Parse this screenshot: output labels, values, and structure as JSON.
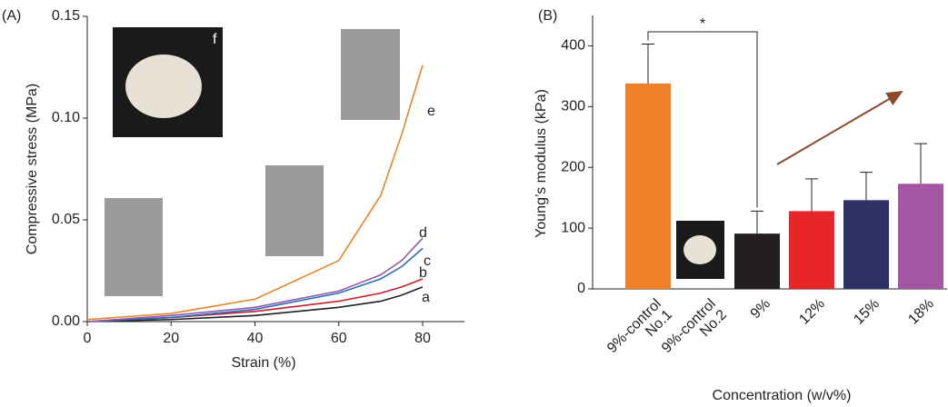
{
  "chart_data": [
    {
      "type": "line",
      "panel": "(A)",
      "xlabel": "Strain (%)",
      "ylabel": "Compressive stress (MPa)",
      "x": [
        0,
        20,
        40,
        60,
        70,
        75,
        80
      ],
      "series": [
        {
          "name": "a",
          "color": "#231f20",
          "values": [
            0,
            0.001,
            0.003,
            0.007,
            0.01,
            0.013,
            0.017
          ]
        },
        {
          "name": "b",
          "color": "#c4202f",
          "values": [
            0,
            0.002,
            0.005,
            0.01,
            0.014,
            0.017,
            0.021
          ]
        },
        {
          "name": "c",
          "color": "#2a6db5",
          "values": [
            0,
            0.002,
            0.006,
            0.014,
            0.021,
            0.027,
            0.036
          ]
        },
        {
          "name": "d",
          "color": "#8e5aa8",
          "values": [
            0,
            0.003,
            0.007,
            0.015,
            0.023,
            0.03,
            0.041
          ]
        },
        {
          "name": "e",
          "color": "#e8832a",
          "values": [
            0.001,
            0.004,
            0.011,
            0.03,
            0.062,
            0.092,
            0.126
          ]
        }
      ],
      "photo_label": "f",
      "xlim": [
        0,
        90
      ],
      "xticks": [
        0,
        20,
        40,
        60,
        80
      ],
      "ylim": [
        0,
        0.15
      ],
      "yticks": [
        {
          "value": 0,
          "label": "0.00"
        },
        {
          "value": 0.05,
          "label": "0.05"
        },
        {
          "value": 0.1,
          "label": "0.10"
        },
        {
          "value": 0.15,
          "label": "0.15"
        }
      ]
    },
    {
      "type": "bar",
      "panel": "(B)",
      "xlabel": "Concentration (w/v%)",
      "ylabel": "Young’s modulus (kPa)",
      "categories": [
        "9%-control\nNo.1",
        "9%-control\nNo.2",
        "9%",
        "12%",
        "15%",
        "18%"
      ],
      "values": [
        338,
        null,
        91,
        128,
        146,
        173
      ],
      "errors": [
        65,
        null,
        37,
        53,
        46,
        66
      ],
      "colors": [
        "#f07f2a",
        null,
        "#231f20",
        "#e8262a",
        "#2e3164",
        "#a356a1"
      ],
      "significance": "*",
      "ylim": [
        0,
        450
      ],
      "yticks": [
        0,
        100,
        200,
        300,
        400
      ]
    }
  ]
}
